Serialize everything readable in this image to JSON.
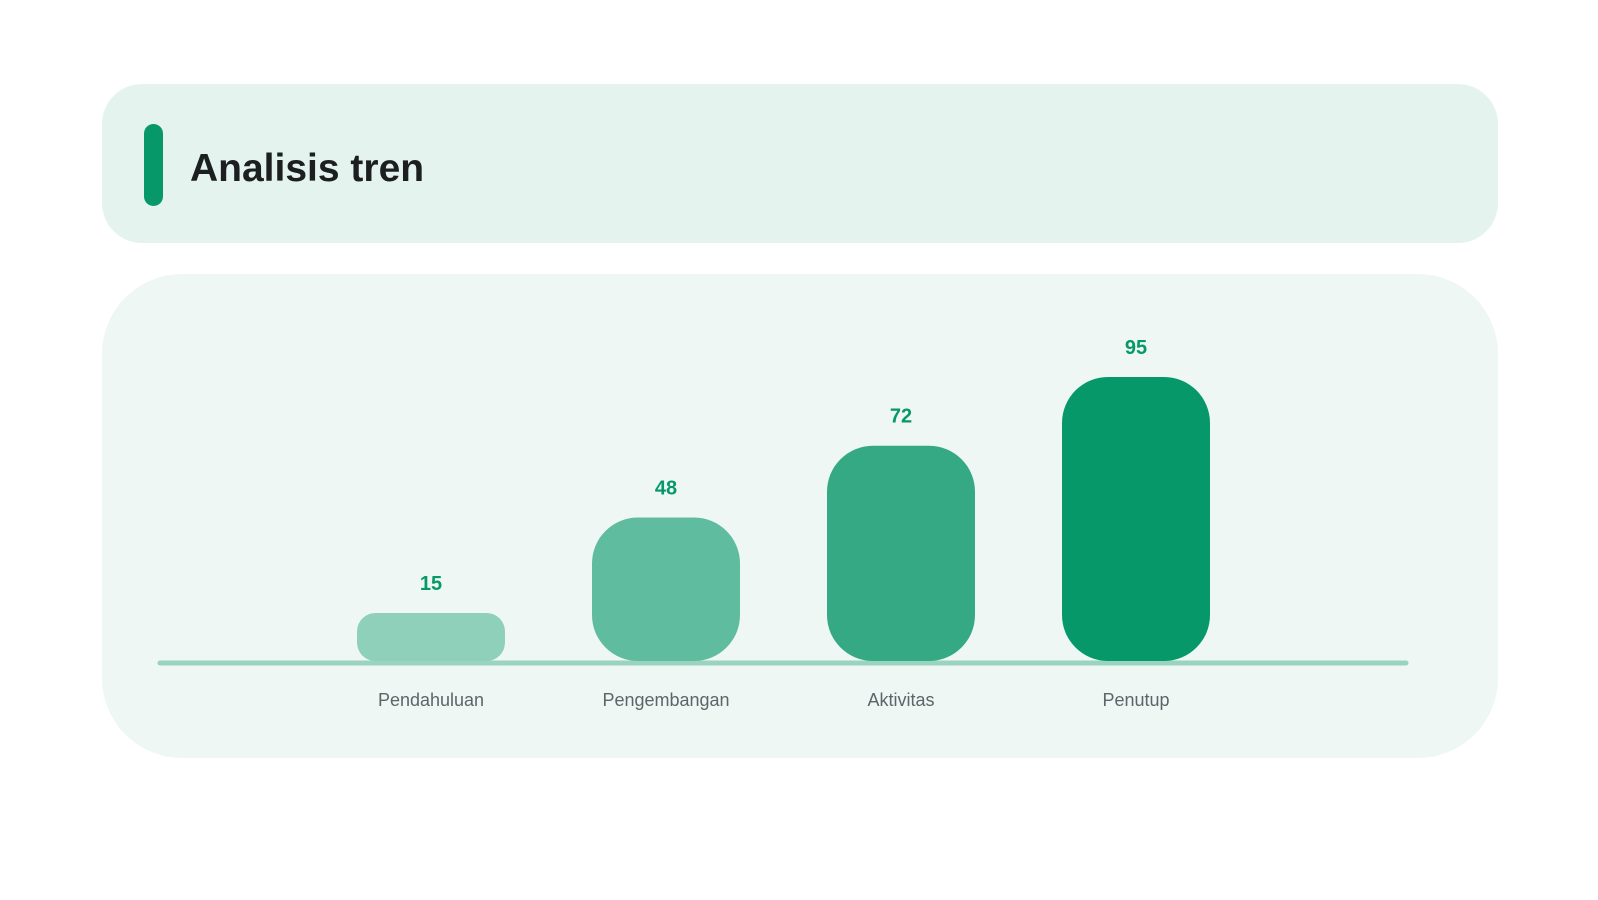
{
  "header": {
    "title": "Analisis tren"
  },
  "colors": {
    "accent": "#079869",
    "header_bg": "#e5f3ee",
    "chart_bg": "#eef7f4",
    "baseline": "#9ad3bf",
    "bar_colors": [
      "#8fd0bb",
      "#60bc9f",
      "#34a983",
      "#079869"
    ],
    "value_label": "#079869",
    "category_label": "#5d6568"
  },
  "chart_data": {
    "type": "bar",
    "categories": [
      "Pendahuluan",
      "Pengembangan",
      "Aktivitas",
      "Penutup"
    ],
    "values": [
      15,
      48,
      72,
      95
    ],
    "title": "",
    "xlabel": "",
    "ylabel": "",
    "ylim": [
      0,
      100
    ],
    "grid": false,
    "legend": "none"
  }
}
